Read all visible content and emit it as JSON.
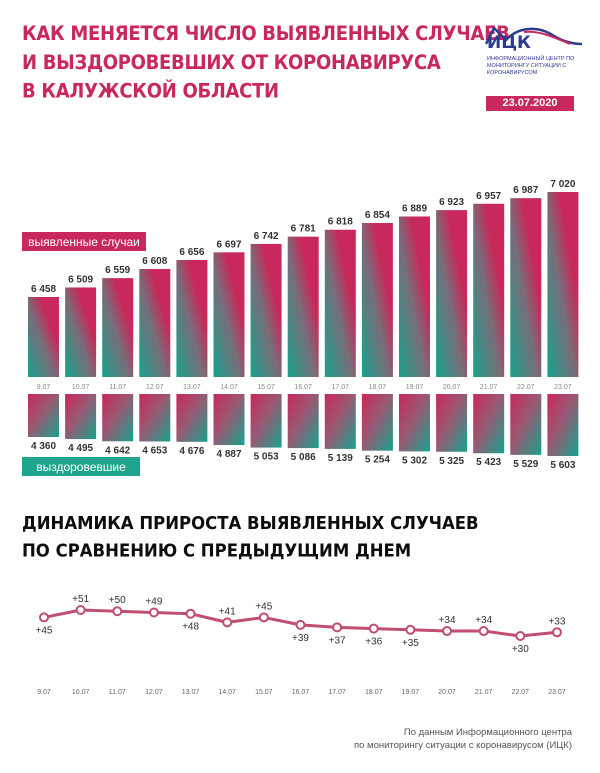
{
  "header": {
    "title_lines": [
      "КАК МЕНЯЕТСЯ ЧИСЛО ВЫЯВЛЕННЫХ СЛУЧАЕВ",
      "И ВЫЗДОРОВЕВШИХ ОТ КОРОНАВИРУСА",
      "В КАЛУЖСКОЙ ОБЛАСТИ"
    ],
    "logo_name": "ИЦК",
    "logo_subtitle": "ИНФОРМАЦИОННЫЙ ЦЕНТР ПО МОНИТОРИНГУ СИТУАЦИИ С КОРОНАВИРУСОМ",
    "date": "23.07.2020"
  },
  "growth_title_lines": [
    "ДИНАМИКА ПРИРОСТА ВЫЯВЛЕННЫХ СЛУЧАЕВ",
    "ПО СРАВНЕНИЮ С ПРЕДЫДУЩИМ ДНЕМ"
  ],
  "footnote_lines": [
    "По данным Информационного центра",
    "по мониторингу ситуации с коронавирусом (ИЦК)"
  ],
  "colors": {
    "accent": "#c8285b",
    "teal": "#1fa48d",
    "brand": "#2d3b8e",
    "line": "#c14d6f"
  },
  "chart_data": [
    {
      "type": "bar",
      "categories": [
        "9.07",
        "10.07",
        "11.07",
        "12.07",
        "13.07",
        "14.07",
        "15.07",
        "16.07",
        "17.07",
        "18.07",
        "19.07",
        "20.07",
        "21.07",
        "22.07",
        "23.07"
      ],
      "series": [
        {
          "name": "выявленные случаи",
          "values": [
            6458,
            6509,
            6559,
            6608,
            6656,
            6697,
            6742,
            6781,
            6818,
            6854,
            6889,
            6923,
            6957,
            6987,
            7020
          ],
          "labels": [
            "6 458",
            "6 509",
            "6 559",
            "6 608",
            "6 656",
            "6 697",
            "6 742",
            "6 781",
            "6 818",
            "6 854",
            "6 889",
            "6 923",
            "6 957",
            "6 987",
            "7 020"
          ]
        },
        {
          "name": "выздоровевшие",
          "values": [
            4360,
            4495,
            4642,
            4653,
            4676,
            4887,
            5053,
            5086,
            5139,
            5254,
            5302,
            5325,
            5423,
            5529,
            5603
          ],
          "labels": [
            "4 360",
            "4 495",
            "4 642",
            "4 653",
            "4 676",
            "4 887",
            "5 053",
            "5 086",
            "5 139",
            "5 254",
            "5 302",
            "5 325",
            "5 423",
            "5 529",
            "5 603"
          ]
        }
      ]
    },
    {
      "type": "line",
      "x": [
        "9.07",
        "10.07",
        "11.07",
        "12.07",
        "13.07",
        "14.07",
        "15.07",
        "16.07",
        "17.07",
        "18.07",
        "19.07",
        "20.07",
        "21.07",
        "22.07",
        "23.07"
      ],
      "values": [
        45,
        51,
        50,
        49,
        48,
        41,
        45,
        39,
        37,
        36,
        35,
        34,
        34,
        30,
        33
      ],
      "labels": [
        "+45",
        "+51",
        "+50",
        "+49",
        "+48",
        "+41",
        "+45",
        "+39",
        "+37",
        "+36",
        "+35",
        "+34",
        "+34",
        "+30",
        "+33"
      ],
      "label_positions": [
        "below",
        "above",
        "above",
        "above",
        "below",
        "above",
        "above",
        "below",
        "below",
        "below",
        "below",
        "above",
        "above",
        "below",
        "above"
      ]
    }
  ]
}
